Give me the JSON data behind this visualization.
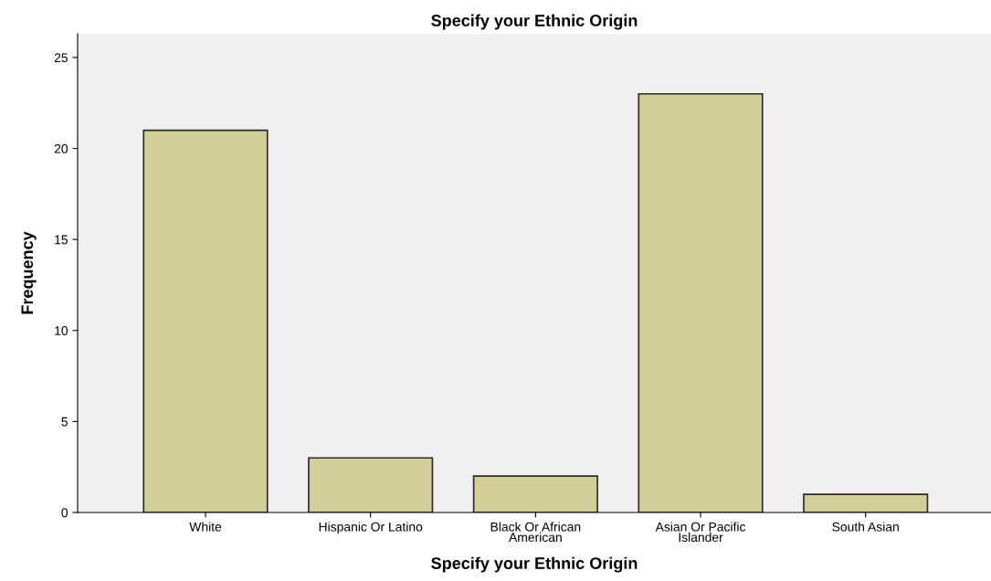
{
  "chart_data": {
    "type": "bar",
    "title": "Specify your Ethnic Origin",
    "xlabel": "Specify your Ethnic Origin",
    "ylabel": "Frequency",
    "categories": [
      "White",
      "Hispanic Or Latino",
      "Black Or African\nAmerican",
      "Asian Or Pacific\nIslander",
      "South Asian"
    ],
    "values": [
      21,
      3,
      2,
      23,
      1
    ],
    "color": "#d3ce97",
    "ylim": [
      0,
      26.3
    ],
    "yticks": [
      0,
      5,
      10,
      15,
      20,
      25
    ],
    "grid": false
  }
}
